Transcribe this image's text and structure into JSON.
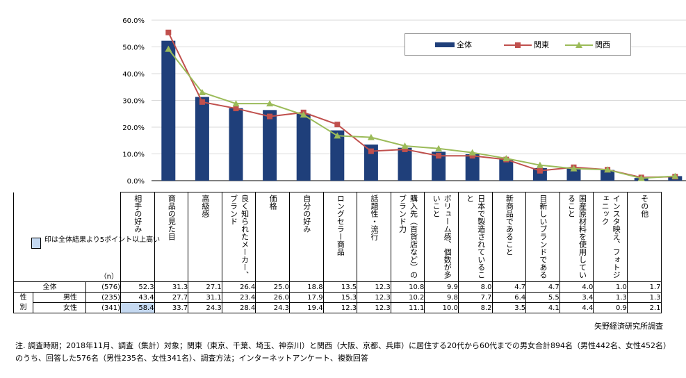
{
  "chart_data": {
    "type": "bar",
    "title": "",
    "xlabel": "",
    "ylabel": "",
    "ylim": [
      0,
      60
    ],
    "yticks": [
      "0.0%",
      "10.0%",
      "20.0%",
      "30.0%",
      "40.0%",
      "50.0%",
      "60.0%"
    ],
    "categories": [
      "相手の好み",
      "商品の見た目",
      "高級感",
      "良く知られたメーカー、ブランド",
      "価格",
      "自分の好み",
      "ロングセラー商品",
      "話題性・流行",
      "購入先（百貨店など）のブランド力",
      "ボリューム感、個数が多いこと",
      "日本で製造されていること",
      "新商品であること",
      "目新しいブランドである",
      "国産原材料を使用していること",
      "インスタ映え、フォトジェニック",
      "その他"
    ],
    "series": [
      {
        "name": "全体",
        "kind": "bar",
        "color": "#1f3f7a",
        "values": [
          52.3,
          31.3,
          27.1,
          26.4,
          25.0,
          18.8,
          13.5,
          12.3,
          10.8,
          9.9,
          8.0,
          4.7,
          4.7,
          4.0,
          1.0,
          1.7
        ]
      },
      {
        "name": "関東",
        "kind": "line",
        "color": "#c0504d",
        "values": [
          55.4,
          29.4,
          27.0,
          24.0,
          25.5,
          21.0,
          11.0,
          11.7,
          9.3,
          9.3,
          7.9,
          3.7,
          5.0,
          4.1,
          1.2,
          1.5
        ]
      },
      {
        "name": "関西",
        "kind": "line",
        "color": "#9bbb59",
        "values": [
          49.2,
          33.0,
          28.8,
          28.8,
          24.6,
          16.8,
          16.2,
          13.0,
          12.0,
          10.5,
          8.3,
          5.8,
          4.5,
          4.1,
          0.9,
          1.7
        ]
      }
    ]
  },
  "legend": {
    "total": "全体",
    "kanto": "関東",
    "kansai": "関西"
  },
  "table": {
    "n_header": "（n）",
    "rows": [
      {
        "group": "",
        "label": "全体",
        "n": "(576)",
        "values": [
          "52.3",
          "31.3",
          "27.1",
          "26.4",
          "25.0",
          "18.8",
          "13.5",
          "12.3",
          "10.8",
          "9.9",
          "8.0",
          "4.7",
          "4.7",
          "4.0",
          "1.0",
          "1.7"
        ]
      },
      {
        "group": "性",
        "label": "男性",
        "n": "(235)",
        "values": [
          "43.4",
          "27.7",
          "31.1",
          "23.4",
          "26.0",
          "17.9",
          "15.3",
          "12.3",
          "10.2",
          "9.8",
          "7.7",
          "6.4",
          "5.5",
          "3.4",
          "1.3",
          "1.3"
        ]
      },
      {
        "group": "別",
        "label": "女性",
        "n": "(341)",
        "values": [
          "58.4",
          "33.7",
          "24.3",
          "28.4",
          "24.3",
          "19.4",
          "12.3",
          "12.3",
          "11.1",
          "10.0",
          "8.2",
          "3.5",
          "4.1",
          "4.4",
          "0.9",
          "2.1"
        ]
      }
    ],
    "highlight_note": "印は全体結果より5ポイント以上高い"
  },
  "colors": {
    "bar": "#1f3f7a",
    "kanto": "#c0504d",
    "kansai": "#9bbb59",
    "highlight": "#c5d9f1",
    "grid": "#d9d9d9"
  },
  "source": "矢野経済研究所調査",
  "footnote": "注. 調査時期；2018年11月、調査（集計）対象；関東（東京、千葉、埼玉、神奈川）と関西（大阪、京都、兵庫）に居住する20代から60代までの男女合計894名（男性442名、女性452名）のうち、回答した576名（男性235名、女性341名）、調査方法；インターネットアンケート、複数回答"
}
